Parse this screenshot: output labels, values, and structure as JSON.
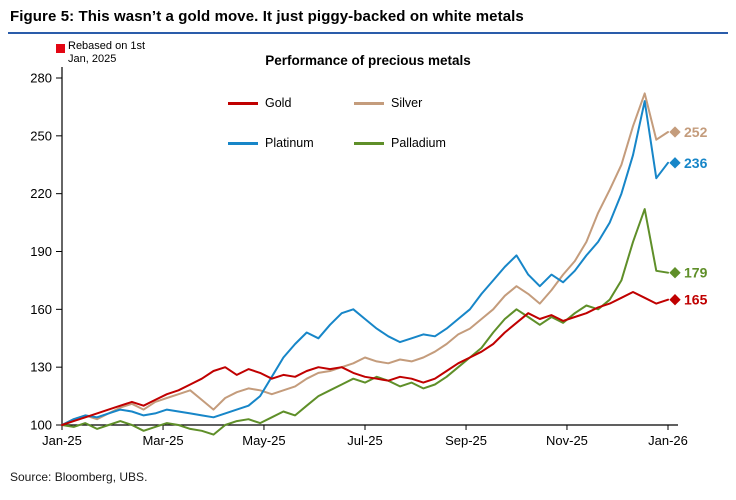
{
  "figure": {
    "title": "Figure 5: This wasn’t a gold move. It just piggy-backed on white metals",
    "source": "Source: Bloomberg, UBS."
  },
  "chart_data": {
    "type": "line",
    "title": "Performance of precious metals",
    "note": "Rebased on 1st Jan, 2025",
    "xlabel": "",
    "ylabel": "",
    "ylim": [
      100,
      280
    ],
    "y_ticks": [
      100,
      130,
      160,
      190,
      220,
      250,
      280
    ],
    "x_tick_labels": [
      "Jan-25",
      "Mar-25",
      "May-25",
      "Jul-25",
      "Sep-25",
      "Nov-25",
      "Jan-26"
    ],
    "x_tick_weeks": [
      0,
      8.67,
      17.33,
      26,
      34.67,
      43.33,
      52
    ],
    "grid": false,
    "legend_position": "upper-left-inside",
    "accent_color": "#2a5caa",
    "bullet_color": "#e30613",
    "series": [
      {
        "name": "Gold",
        "color": "#c00000",
        "end_label": 165,
        "values": [
          100,
          102,
          104,
          106,
          108,
          110,
          112,
          110,
          113,
          116,
          118,
          121,
          124,
          128,
          130,
          126,
          129,
          127,
          124,
          126,
          125,
          128,
          130,
          129,
          130,
          127,
          125,
          124,
          123,
          125,
          124,
          122,
          124,
          128,
          132,
          135,
          138,
          142,
          148,
          153,
          158,
          155,
          157,
          154,
          156,
          158,
          161,
          163,
          166,
          169,
          166,
          163,
          165
        ]
      },
      {
        "name": "Silver",
        "color": "#c49c7c",
        "end_label": 252,
        "values": [
          100,
          103,
          105,
          103,
          106,
          109,
          111,
          108,
          112,
          114,
          116,
          118,
          113,
          108,
          114,
          117,
          119,
          118,
          116,
          118,
          120,
          124,
          127,
          128,
          130,
          132,
          135,
          133,
          132,
          134,
          133,
          135,
          138,
          142,
          147,
          150,
          155,
          160,
          167,
          172,
          168,
          163,
          170,
          178,
          185,
          195,
          210,
          222,
          235,
          255,
          272,
          248,
          252
        ]
      },
      {
        "name": "Platinum",
        "color": "#1786c8",
        "end_label": 236,
        "values": [
          100,
          103,
          105,
          104,
          106,
          108,
          107,
          105,
          106,
          108,
          107,
          106,
          105,
          104,
          106,
          108,
          110,
          115,
          125,
          135,
          142,
          148,
          145,
          152,
          158,
          160,
          155,
          150,
          146,
          143,
          145,
          147,
          146,
          150,
          155,
          160,
          168,
          175,
          182,
          188,
          178,
          172,
          178,
          174,
          180,
          188,
          195,
          205,
          220,
          240,
          268,
          228,
          236
        ]
      },
      {
        "name": "Palladium",
        "color": "#5f8f29",
        "end_label": 179,
        "values": [
          100,
          99,
          101,
          98,
          100,
          102,
          100,
          97,
          99,
          101,
          100,
          98,
          97,
          95,
          100,
          102,
          103,
          101,
          104,
          107,
          105,
          110,
          115,
          118,
          121,
          124,
          122,
          125,
          123,
          120,
          122,
          119,
          121,
          125,
          130,
          135,
          140,
          148,
          155,
          160,
          156,
          152,
          156,
          153,
          158,
          162,
          160,
          165,
          175,
          195,
          212,
          180,
          179
        ]
      }
    ]
  }
}
